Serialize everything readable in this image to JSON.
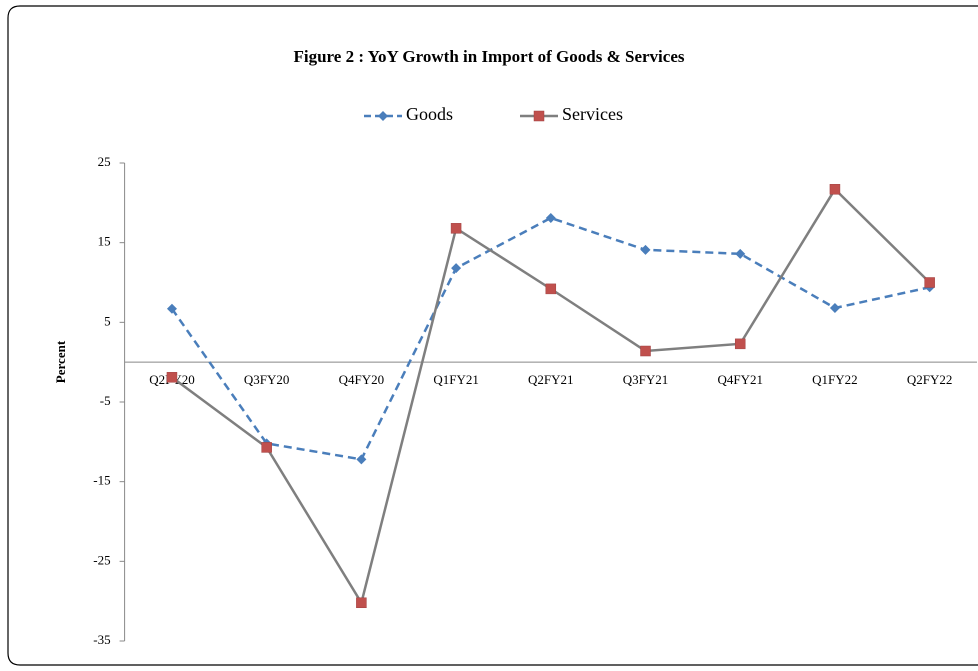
{
  "chart_data": {
    "type": "line",
    "title": "Figure 2 : YoY Growth in Import  of Goods & Services",
    "y_label": "Percent",
    "categories": [
      "Q2FY20",
      "Q3FY20",
      "Q4FY20",
      "Q1FY21",
      "Q2FY21",
      "Q3FY21",
      "Q4FY21",
      "Q1FY22",
      "Q2FY22"
    ],
    "series": [
      {
        "name": "Goods",
        "color": "#4a7ebb",
        "marker": "diamond",
        "dashed": true,
        "values": [
          6.7,
          -10.2,
          -12.2,
          11.8,
          18.1,
          14.1,
          13.6,
          6.8,
          9.4
        ]
      },
      {
        "name": "Services",
        "color": "#7f7f7f",
        "marker_color": "#c0504d",
        "marker": "square",
        "dashed": false,
        "values": [
          -1.9,
          -10.7,
          -30.2,
          16.8,
          9.2,
          1.4,
          2.3,
          21.7,
          10.0
        ]
      }
    ],
    "ylim": [
      -35,
      25
    ],
    "yticks": [
      25,
      15,
      5,
      -5,
      -15,
      -25,
      -35
    ],
    "grid": false
  }
}
